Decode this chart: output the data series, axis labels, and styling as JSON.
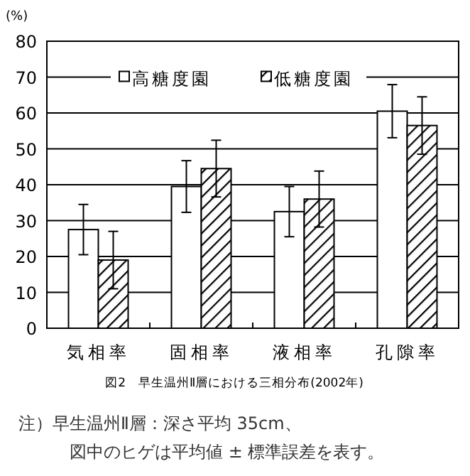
{
  "chart_data": {
    "type": "bar",
    "title": "図2　早生温州Ⅱ層における三相分布(2002年)",
    "ylabel": "(%)",
    "categories": [
      "気相率",
      "固相率",
      "液相率",
      "孔隙率"
    ],
    "series": [
      {
        "name": "高糖度園",
        "color": "#ffffff",
        "values": [
          27.5,
          39.5,
          32.5,
          60.5
        ],
        "errors": [
          7,
          7.2,
          7,
          7.4
        ]
      },
      {
        "name": "低糖度園",
        "color": "#000000",
        "values": [
          19,
          44.5,
          36,
          56.5
        ],
        "errors": [
          8,
          7.9,
          7.8,
          8
        ]
      }
    ],
    "ylim": [
      0,
      80
    ],
    "yticks": [
      0,
      10,
      20,
      30,
      40,
      50,
      60,
      70,
      80
    ],
    "grid": "y",
    "legend": "top",
    "annotations": [
      "注）早生温州Ⅱ層：深さ平均 35cm、",
      "図中のヒゲは平均値 ± 標準誤差を表す。"
    ]
  }
}
